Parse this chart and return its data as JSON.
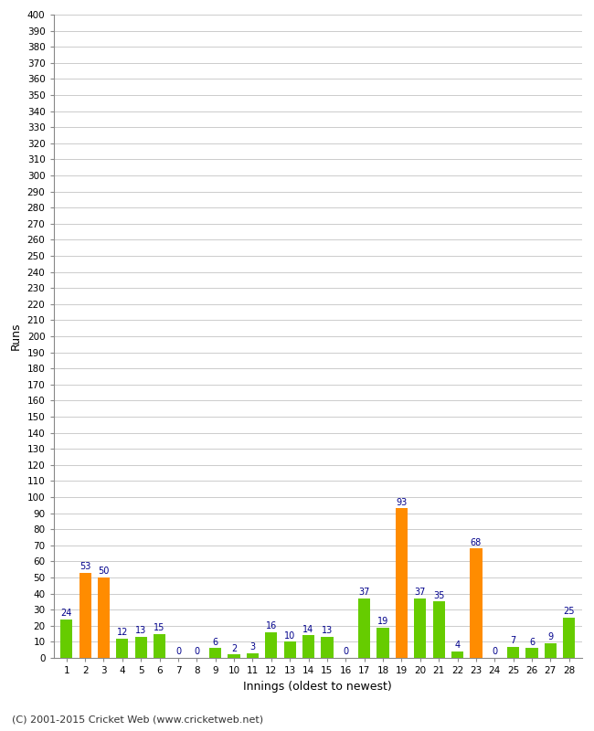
{
  "xlabel": "Innings (oldest to newest)",
  "ylabel": "Runs",
  "innings": [
    1,
    2,
    3,
    4,
    5,
    6,
    7,
    8,
    9,
    10,
    11,
    12,
    13,
    14,
    15,
    16,
    17,
    18,
    19,
    20,
    21,
    22,
    23,
    24,
    25,
    26,
    27,
    28
  ],
  "values": [
    24,
    53,
    50,
    12,
    13,
    15,
    0,
    0,
    6,
    2,
    3,
    16,
    10,
    14,
    13,
    0,
    37,
    19,
    93,
    37,
    35,
    4,
    68,
    0,
    7,
    6,
    9,
    25
  ],
  "colors": [
    "#66cc00",
    "#ff8c00",
    "#ff8c00",
    "#66cc00",
    "#66cc00",
    "#66cc00",
    "#66cc00",
    "#66cc00",
    "#66cc00",
    "#66cc00",
    "#66cc00",
    "#66cc00",
    "#66cc00",
    "#66cc00",
    "#66cc00",
    "#66cc00",
    "#66cc00",
    "#66cc00",
    "#ff8c00",
    "#66cc00",
    "#66cc00",
    "#66cc00",
    "#ff8c00",
    "#66cc00",
    "#66cc00",
    "#66cc00",
    "#66cc00",
    "#66cc00"
  ],
  "ylim": [
    0,
    400
  ],
  "yticks": [
    0,
    10,
    20,
    30,
    40,
    50,
    60,
    70,
    80,
    90,
    100,
    110,
    120,
    130,
    140,
    150,
    160,
    170,
    180,
    190,
    200,
    210,
    220,
    230,
    240,
    250,
    260,
    270,
    280,
    290,
    300,
    310,
    320,
    330,
    340,
    350,
    360,
    370,
    380,
    390,
    400
  ],
  "label_color": "#00008b",
  "grid_color": "#cccccc",
  "background_color": "#ffffff",
  "footer": "(C) 2001-2015 Cricket Web (www.cricketweb.net)",
  "bar_width": 0.65
}
